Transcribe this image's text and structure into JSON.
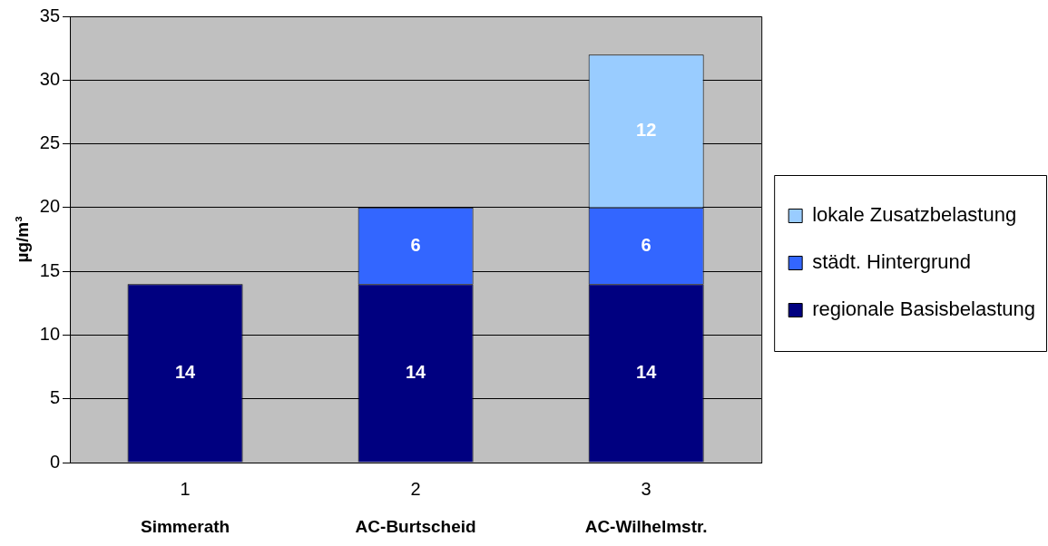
{
  "chart_data": {
    "type": "bar",
    "stacked": true,
    "categories": [
      "1",
      "2",
      "3"
    ],
    "series": [
      {
        "name": "regionale Basisbelastung",
        "color": "#000080",
        "values": [
          14,
          14,
          14
        ]
      },
      {
        "name": "städt. Hintergrund",
        "color": "#3366ff",
        "values": [
          null,
          6,
          6
        ]
      },
      {
        "name": "lokale Zusatzbelastung",
        "color": "#99ccff",
        "values": [
          null,
          null,
          12
        ]
      }
    ],
    "ylabel": "µg/m³",
    "ylim": [
      0,
      35
    ],
    "yticks": [
      0,
      5,
      10,
      15,
      20,
      25,
      30,
      35
    ],
    "grid": "y",
    "legend": "right",
    "data_labels": true,
    "annotations": [
      "Simmerath",
      "AC-Burtscheid",
      "AC-Wilhelmstr."
    ]
  }
}
